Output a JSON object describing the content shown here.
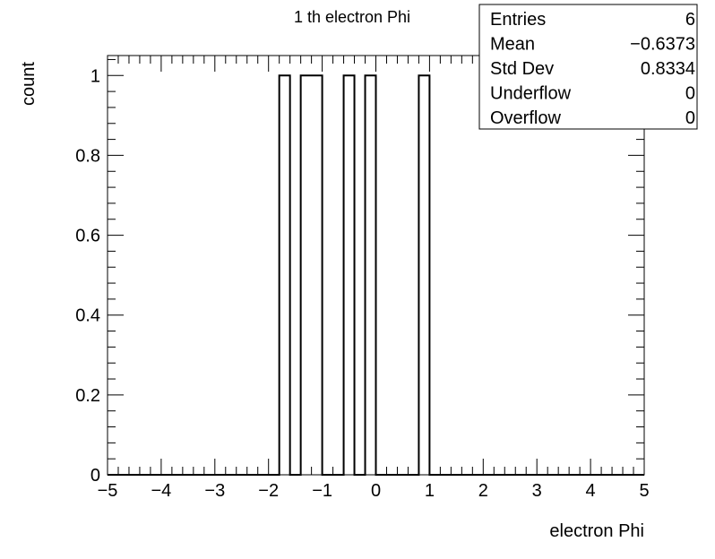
{
  "chart_data": {
    "type": "bar",
    "title": "1 th electron Phi",
    "xlabel": "electron Phi",
    "ylabel": "count",
    "xlim": [
      -5,
      5
    ],
    "ylim": [
      0,
      1.05
    ],
    "x_ticks": [
      "−5",
      "−4",
      "−3",
      "−2",
      "−1",
      "0",
      "1",
      "2",
      "3",
      "4",
      "5"
    ],
    "y_ticks": [
      "0",
      "0.2",
      "0.4",
      "0.6",
      "0.8",
      "1"
    ],
    "bin_width": 0.2,
    "bins": [
      {
        "x0": -1.8,
        "x1": -1.6,
        "value": 1
      },
      {
        "x0": -1.4,
        "x1": -1.0,
        "value": 1
      },
      {
        "x0": -0.6,
        "x1": -0.4,
        "value": 1
      },
      {
        "x0": -0.2,
        "x1": 0.0,
        "value": 1
      },
      {
        "x0": 0.8,
        "x1": 1.0,
        "value": 1
      }
    ],
    "grid": false,
    "line_color": "#000000"
  },
  "stats_box": {
    "placement": "top-right",
    "rows": [
      {
        "label": "Entries",
        "value": "6"
      },
      {
        "label": "Mean",
        "value": "−0.6373"
      },
      {
        "label": "Std Dev",
        "value": "0.8334"
      },
      {
        "label": "Underflow",
        "value": "0"
      },
      {
        "label": "Overflow",
        "value": "0"
      }
    ]
  }
}
